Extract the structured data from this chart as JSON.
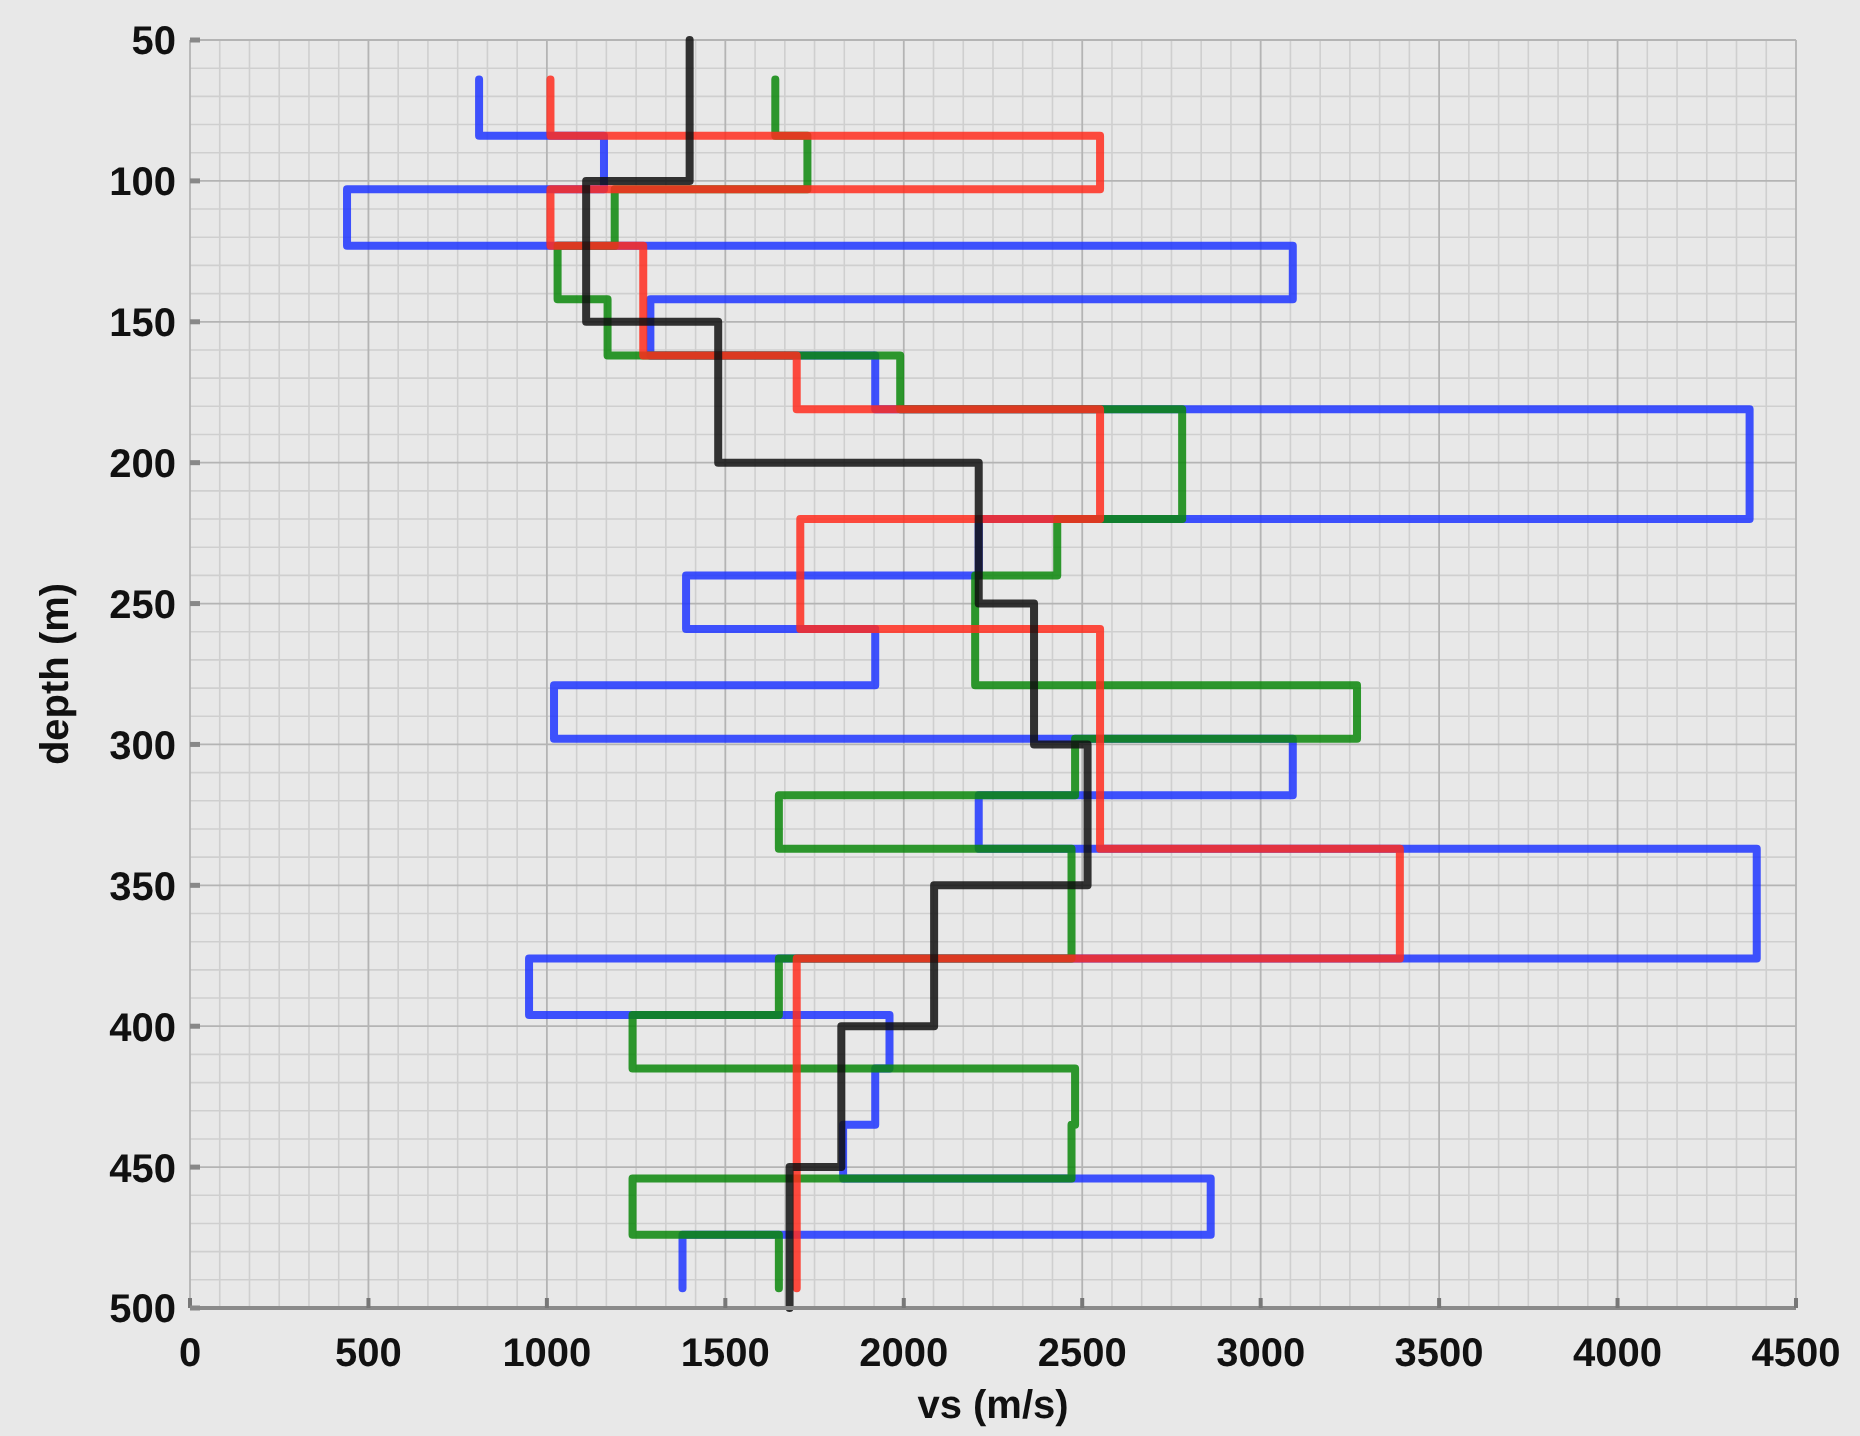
{
  "chart_data": {
    "type": "line",
    "xlabel": "vs (m/s)",
    "ylabel": "depth (m)",
    "xlim": [
      0,
      4500
    ],
    "xticks": [
      0,
      500,
      1000,
      1500,
      2000,
      2500,
      3000,
      3500,
      4000,
      4500
    ],
    "ylim": [
      500,
      50
    ],
    "yticks": [
      50,
      100,
      150,
      200,
      250,
      300,
      350,
      400,
      450,
      500
    ],
    "grid": true,
    "series": [
      {
        "color": "#1f35ff",
        "x": [
          810,
          810,
          1160,
          1160,
          440,
          440,
          3090,
          3090,
          1290,
          1290,
          1920,
          1920,
          4370,
          4370,
          2210,
          2210,
          1390,
          1390,
          1920,
          1920,
          1020,
          1020,
          3090,
          3090,
          2210,
          2210,
          4390,
          4390,
          950,
          950,
          1960,
          1960,
          1920,
          1920,
          1830,
          1830,
          2860,
          2860,
          1380,
          1380
        ],
        "values": [
          64,
          84,
          84,
          103,
          103,
          123,
          123,
          142,
          142,
          162,
          162,
          181,
          181,
          220,
          220,
          240,
          240,
          259,
          259,
          279,
          279,
          298,
          298,
          318,
          318,
          337,
          337,
          376,
          376,
          396,
          396,
          415,
          415,
          435,
          435,
          454,
          454,
          474,
          474,
          493
        ]
      },
      {
        "color": "#0b870b",
        "x": [
          1640,
          1640,
          1730,
          1730,
          1190,
          1190,
          1030,
          1030,
          1170,
          1170,
          1990,
          1990,
          2780,
          2780,
          2430,
          2430,
          2200,
          2200,
          3270,
          3270,
          2480,
          2480,
          1650,
          1650,
          2470,
          2470,
          1650,
          1650,
          1240,
          1240,
          2480,
          2480,
          2470,
          2470,
          1240,
          1240,
          1650,
          1650
        ],
        "values": [
          64,
          84,
          84,
          103,
          103,
          123,
          123,
          142,
          142,
          162,
          162,
          181,
          181,
          220,
          220,
          240,
          240,
          279,
          279,
          298,
          298,
          318,
          318,
          337,
          337,
          376,
          376,
          396,
          396,
          415,
          415,
          435,
          435,
          454,
          454,
          474,
          474,
          493
        ]
      },
      {
        "color": "#ff2d1f",
        "x": [
          1010,
          1010,
          2550,
          2550,
          1010,
          1010,
          1270,
          1270,
          1700,
          1700,
          2550,
          2550,
          1710,
          1710,
          2550,
          2550,
          3390,
          3390,
          1700,
          1700
        ],
        "values": [
          64,
          84,
          84,
          103,
          103,
          123,
          123,
          162,
          162,
          181,
          181,
          220,
          220,
          259,
          259,
          337,
          337,
          376,
          376,
          493
        ]
      },
      {
        "color": "#111111",
        "x": [
          1400,
          1400,
          1110,
          1110,
          1480,
          1480,
          2210,
          2210,
          2365,
          2365,
          2515,
          2515,
          2085,
          2085,
          1825,
          1825,
          1680,
          1680
        ],
        "values": [
          50,
          100,
          100,
          150,
          150,
          200,
          200,
          250,
          250,
          300,
          300,
          350,
          350,
          400,
          400,
          450,
          450,
          500
        ]
      }
    ]
  }
}
